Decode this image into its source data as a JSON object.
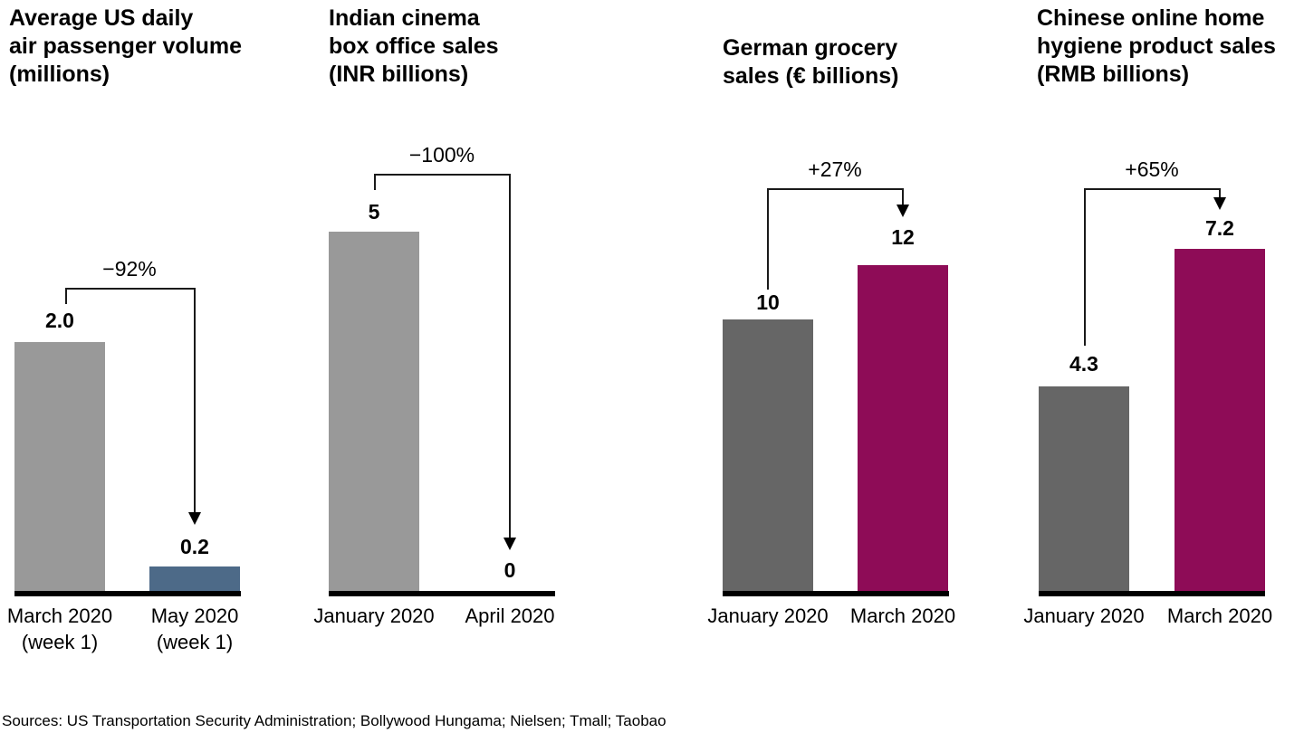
{
  "chart_data": [
    {
      "type": "bar",
      "title": "Average US daily air passenger volume (millions)",
      "title_lines": [
        "Average US daily",
        "air passenger volume",
        "(millions)"
      ],
      "categories": [
        "March 2020 (week 1)",
        "May 2020 (week 1)"
      ],
      "category_lines": [
        [
          "March 2020",
          "(week 1)"
        ],
        [
          "May 2020",
          "(week 1)"
        ]
      ],
      "values": [
        2.0,
        0.2
      ],
      "value_labels": [
        "2.0",
        "0.2"
      ],
      "change_label": "−92%",
      "bar_colors": [
        "#999999",
        "#4d6a88"
      ],
      "grid": false,
      "legend": false
    },
    {
      "type": "bar",
      "title": "Indian cinema box office sales (INR billions)",
      "title_lines": [
        "Indian cinema",
        "box office sales",
        "(INR billions)"
      ],
      "categories": [
        "January 2020",
        "April 2020"
      ],
      "values": [
        5,
        0
      ],
      "value_labels": [
        "5",
        "0"
      ],
      "change_label": "−100%",
      "bar_colors": [
        "#999999",
        "#999999"
      ],
      "grid": false,
      "legend": false
    },
    {
      "type": "bar",
      "title": "German grocery sales (€ billions)",
      "title_lines": [
        "German grocery",
        "sales (€ billions)"
      ],
      "categories": [
        "January 2020",
        "March 2020"
      ],
      "values": [
        10,
        12
      ],
      "value_labels": [
        "10",
        "12"
      ],
      "change_label": "+27%",
      "bar_colors": [
        "#666666",
        "#8e0c57"
      ],
      "grid": false,
      "legend": false
    },
    {
      "type": "bar",
      "title": "Chinese online home hygiene product sales (RMB billions)",
      "title_lines": [
        "Chinese online home",
        "hygiene product sales",
        "(RMB billions)"
      ],
      "categories": [
        "January 2020",
        "March 2020"
      ],
      "values": [
        4.3,
        7.2
      ],
      "value_labels": [
        "4.3",
        "7.2"
      ],
      "change_label": "+65%",
      "bar_colors": [
        "#666666",
        "#8e0c57"
      ],
      "grid": false,
      "legend": false
    }
  ],
  "colors": {
    "light_gray": "#999999",
    "dark_gray": "#666666",
    "slate_blue": "#4d6a88",
    "magenta": "#8e0c57",
    "axis": "#000000"
  },
  "footer": {
    "sources": "Sources: US Transportation Security Administration; Bollywood Hungama; Nielsen; Tmall; Taobao"
  }
}
